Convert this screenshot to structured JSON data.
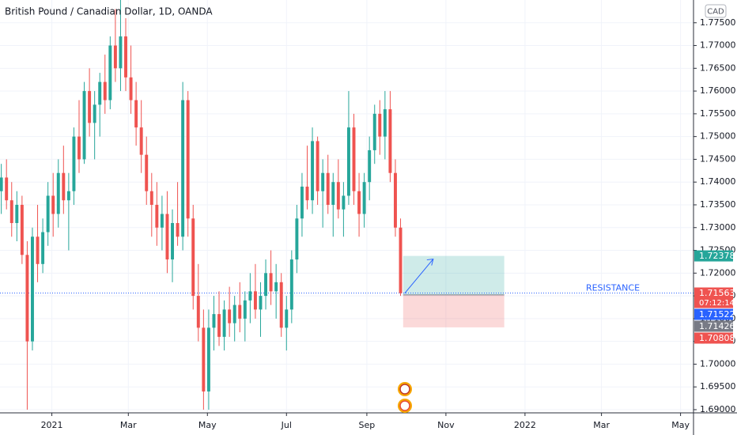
{
  "chart_data": {
    "type": "candlestick",
    "title": "British Pound / Canadian Dollar, 1D, OANDA",
    "currency": "CAD",
    "up_color": "#26a69a",
    "down_color": "#ef5350",
    "grid": true,
    "x": [
      "2020-11-23",
      "2020-11-27",
      "2020-12-01",
      "2020-12-05",
      "2020-12-09",
      "2020-12-13",
      "2020-12-17",
      "2020-12-21",
      "2020-12-25",
      "2020-12-29",
      "2021-01-02",
      "2021-01-06",
      "2021-01-10",
      "2021-01-14",
      "2021-01-18",
      "2021-01-22",
      "2021-01-26",
      "2021-01-30",
      "2021-02-03",
      "2021-02-07",
      "2021-02-11",
      "2021-02-15",
      "2021-02-19",
      "2021-02-23",
      "2021-02-27",
      "2021-03-03",
      "2021-03-07",
      "2021-03-11",
      "2021-03-15",
      "2021-03-19",
      "2021-03-23",
      "2021-03-27",
      "2021-03-31",
      "2021-04-04",
      "2021-04-08",
      "2021-04-12",
      "2021-04-16",
      "2021-04-20",
      "2021-04-24",
      "2021-04-28",
      "2021-05-02",
      "2021-05-06",
      "2021-05-10",
      "2021-05-14",
      "2021-05-18",
      "2021-05-22",
      "2021-05-26",
      "2021-05-30",
      "2021-06-03",
      "2021-06-07",
      "2021-06-11",
      "2021-06-15",
      "2021-06-19",
      "2021-06-23",
      "2021-06-27",
      "2021-07-01",
      "2021-07-05",
      "2021-07-09",
      "2021-07-13",
      "2021-07-17",
      "2021-07-21",
      "2021-07-25",
      "2021-07-29",
      "2021-08-02",
      "2021-08-06",
      "2021-08-10",
      "2021-08-14",
      "2021-08-18",
      "2021-08-22",
      "2021-08-26",
      "2021-08-30",
      "2021-09-03",
      "2021-09-07",
      "2021-09-11",
      "2021-09-15",
      "2021-09-19",
      "2021-09-23",
      "2021-09-27"
    ],
    "open": [
      1.738,
      1.741,
      1.736,
      1.731,
      1.735,
      1.724,
      1.705,
      1.728,
      1.722,
      1.729,
      1.737,
      1.733,
      1.742,
      1.736,
      1.738,
      1.75,
      1.745,
      1.76,
      1.753,
      1.757,
      1.762,
      1.758,
      1.77,
      1.765,
      1.772,
      1.763,
      1.758,
      1.752,
      1.746,
      1.738,
      1.735,
      1.73,
      1.733,
      1.723,
      1.731,
      1.728,
      1.758,
      1.732,
      1.715,
      1.708,
      1.694,
      1.708,
      1.711,
      1.706,
      1.712,
      1.709,
      1.713,
      1.71,
      1.714,
      1.716,
      1.712,
      1.715,
      1.72,
      1.716,
      1.718,
      1.708,
      1.712,
      1.723,
      1.732,
      1.739,
      1.736,
      1.749,
      1.738,
      1.742,
      1.735,
      1.74,
      1.734,
      1.737,
      1.752,
      1.738,
      1.733,
      1.74,
      1.747,
      1.755,
      1.75,
      1.756,
      1.742,
      1.73
    ],
    "high": [
      1.744,
      1.745,
      1.74,
      1.738,
      1.737,
      1.727,
      1.73,
      1.735,
      1.732,
      1.74,
      1.742,
      1.745,
      1.748,
      1.742,
      1.752,
      1.758,
      1.762,
      1.765,
      1.76,
      1.764,
      1.768,
      1.772,
      1.778,
      1.78,
      1.776,
      1.77,
      1.762,
      1.758,
      1.75,
      1.742,
      1.74,
      1.737,
      1.738,
      1.734,
      1.74,
      1.762,
      1.76,
      1.735,
      1.722,
      1.712,
      1.712,
      1.715,
      1.716,
      1.714,
      1.717,
      1.715,
      1.718,
      1.716,
      1.72,
      1.722,
      1.718,
      1.723,
      1.725,
      1.722,
      1.72,
      1.715,
      1.725,
      1.735,
      1.742,
      1.748,
      1.752,
      1.75,
      1.745,
      1.746,
      1.742,
      1.745,
      1.74,
      1.76,
      1.755,
      1.742,
      1.742,
      1.75,
      1.757,
      1.758,
      1.76,
      1.76,
      1.745,
      1.732
    ],
    "low": [
      1.733,
      1.734,
      1.728,
      1.727,
      1.722,
      1.69,
      1.703,
      1.718,
      1.72,
      1.726,
      1.728,
      1.73,
      1.733,
      1.725,
      1.735,
      1.742,
      1.744,
      1.75,
      1.745,
      1.75,
      1.755,
      1.756,
      1.762,
      1.76,
      1.76,
      1.755,
      1.748,
      1.742,
      1.735,
      1.728,
      1.726,
      1.725,
      1.72,
      1.718,
      1.726,
      1.725,
      1.728,
      1.712,
      1.705,
      1.69,
      1.69,
      1.703,
      1.704,
      1.703,
      1.706,
      1.705,
      1.707,
      1.705,
      1.709,
      1.71,
      1.706,
      1.712,
      1.713,
      1.71,
      1.706,
      1.703,
      1.709,
      1.72,
      1.728,
      1.734,
      1.733,
      1.735,
      1.73,
      1.733,
      1.728,
      1.732,
      1.728,
      1.735,
      1.735,
      1.728,
      1.73,
      1.736,
      1.744,
      1.746,
      1.745,
      1.74,
      1.728,
      1.715
    ],
    "close": [
      1.741,
      1.736,
      1.731,
      1.735,
      1.724,
      1.705,
      1.728,
      1.722,
      1.729,
      1.737,
      1.733,
      1.742,
      1.736,
      1.738,
      1.75,
      1.745,
      1.76,
      1.753,
      1.757,
      1.762,
      1.758,
      1.77,
      1.765,
      1.772,
      1.763,
      1.758,
      1.752,
      1.746,
      1.738,
      1.735,
      1.73,
      1.733,
      1.723,
      1.731,
      1.728,
      1.758,
      1.732,
      1.715,
      1.708,
      1.694,
      1.708,
      1.711,
      1.706,
      1.712,
      1.709,
      1.713,
      1.71,
      1.714,
      1.716,
      1.712,
      1.715,
      1.72,
      1.716,
      1.718,
      1.708,
      1.712,
      1.723,
      1.732,
      1.739,
      1.736,
      1.749,
      1.738,
      1.742,
      1.735,
      1.74,
      1.734,
      1.737,
      1.752,
      1.738,
      1.733,
      1.74,
      1.747,
      1.755,
      1.75,
      1.756,
      1.742,
      1.73,
      1.7156
    ],
    "xlim": [
      "2020-11-22",
      "2022-05-11"
    ],
    "ylim": [
      1.6893,
      1.78
    ],
    "xticks": [
      {
        "value": "2021-01-01",
        "label": "2021"
      },
      {
        "value": "2021-03-01",
        "label": "Mar"
      },
      {
        "value": "2021-05-01",
        "label": "May"
      },
      {
        "value": "2021-07-01",
        "label": "Jul"
      },
      {
        "value": "2021-09-01",
        "label": "Sep"
      },
      {
        "value": "2021-11-01",
        "label": "Nov"
      },
      {
        "value": "2022-01-01",
        "label": "2022"
      },
      {
        "value": "2022-03-01",
        "label": "Mar"
      },
      {
        "value": "2022-05-01",
        "label": "May"
      }
    ],
    "yticks": [
      {
        "value": 1.69,
        "label": "1.69000"
      },
      {
        "value": 1.695,
        "label": "1.69500"
      },
      {
        "value": 1.7,
        "label": "1.70000"
      },
      {
        "value": 1.705,
        "label": "1.70500"
      },
      {
        "value": 1.71,
        "label": "1.71000"
      },
      {
        "value": 1.715,
        "label": "1.71500"
      },
      {
        "value": 1.72,
        "label": "1.72000"
      },
      {
        "value": 1.725,
        "label": "1.72500"
      },
      {
        "value": 1.73,
        "label": "1.73000"
      },
      {
        "value": 1.735,
        "label": "1.73500"
      },
      {
        "value": 1.74,
        "label": "1.74000"
      },
      {
        "value": 1.745,
        "label": "1.74500"
      },
      {
        "value": 1.75,
        "label": "1.75000"
      },
      {
        "value": 1.755,
        "label": "1.75500"
      },
      {
        "value": 1.76,
        "label": "1.76000"
      },
      {
        "value": 1.765,
        "label": "1.76500"
      },
      {
        "value": 1.77,
        "label": "1.77000"
      },
      {
        "value": 1.775,
        "label": "1.77500"
      }
    ],
    "resistance": {
      "text": "RESISTANCE",
      "value": 1.71563,
      "color": "#2962ff"
    },
    "position": {
      "start": "2021-09-29",
      "end": "2021-12-16",
      "entry": 1.71522,
      "target": 1.72378,
      "stop": 1.70808
    },
    "price_tags": [
      {
        "value": 1.72378,
        "color": "#26a69a"
      },
      {
        "value": 1.71563,
        "color": "#ef5350",
        "countdown": "07:12:14"
      },
      {
        "value": 1.71522,
        "color": "#2962ff"
      },
      {
        "value": 1.71426,
        "color": "#787b86"
      },
      {
        "value": 1.70808,
        "color": "#ef5350"
      }
    ]
  }
}
